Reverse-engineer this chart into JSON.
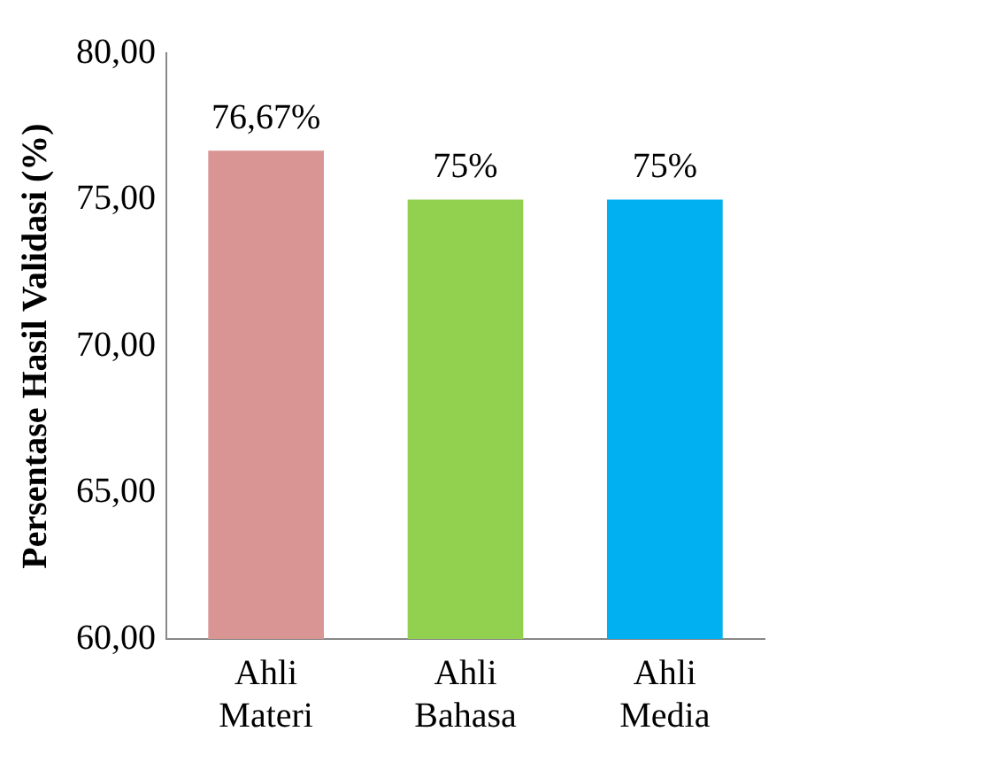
{
  "chart_data": {
    "type": "bar",
    "ylabel": "Persentase Hasil Validasi (%)",
    "categories": [
      "Ahli Materi",
      "Ahli Bahasa",
      "Ahli Media"
    ],
    "values": [
      76.67,
      75,
      75
    ],
    "colors": [
      "#d99594",
      "#92d050",
      "#00b0f0"
    ],
    "value_labels": [
      "76,67%",
      "75%",
      "75%"
    ],
    "ylim": [
      60,
      80
    ],
    "yticks": [
      {
        "value": 60,
        "label": "60,00"
      },
      {
        "value": 65,
        "label": "65,00"
      },
      {
        "value": 70,
        "label": "70,00"
      },
      {
        "value": 75,
        "label": "75,00"
      },
      {
        "value": 80,
        "label": "80,00"
      }
    ],
    "grid": false,
    "legend": false
  }
}
